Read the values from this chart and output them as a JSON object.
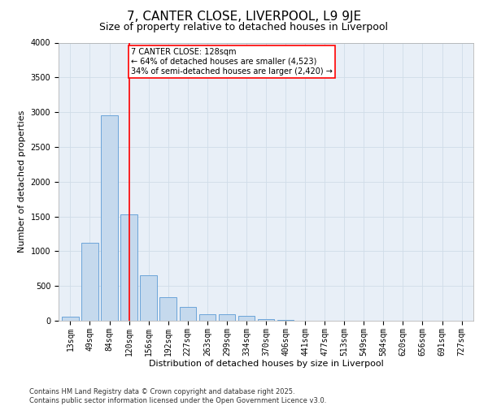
{
  "title": "7, CANTER CLOSE, LIVERPOOL, L9 9JE",
  "subtitle": "Size of property relative to detached houses in Liverpool",
  "xlabel": "Distribution of detached houses by size in Liverpool",
  "ylabel": "Number of detached properties",
  "categories": [
    "13sqm",
    "49sqm",
    "84sqm",
    "120sqm",
    "156sqm",
    "192sqm",
    "227sqm",
    "263sqm",
    "299sqm",
    "334sqm",
    "370sqm",
    "406sqm",
    "441sqm",
    "477sqm",
    "513sqm",
    "549sqm",
    "584sqm",
    "620sqm",
    "656sqm",
    "691sqm",
    "727sqm"
  ],
  "values": [
    55,
    1120,
    2960,
    1530,
    650,
    340,
    195,
    95,
    90,
    65,
    18,
    8,
    4,
    2,
    1,
    0,
    0,
    0,
    0,
    0,
    0
  ],
  "bar_color": "#c5d9ed",
  "bar_edge_color": "#5b9bd5",
  "vline_x_index": 3,
  "vline_color": "red",
  "annotation_text": "7 CANTER CLOSE: 128sqm\n← 64% of detached houses are smaller (4,523)\n34% of semi-detached houses are larger (2,420) →",
  "annotation_box_color": "red",
  "annotation_text_color": "black",
  "ylim": [
    0,
    4000
  ],
  "yticks": [
    0,
    500,
    1000,
    1500,
    2000,
    2500,
    3000,
    3500,
    4000
  ],
  "grid_color": "#d0dce8",
  "background_color": "#e8eff7",
  "footnote": "Contains HM Land Registry data © Crown copyright and database right 2025.\nContains public sector information licensed under the Open Government Licence v3.0.",
  "title_fontsize": 11,
  "subtitle_fontsize": 9,
  "xlabel_fontsize": 8,
  "ylabel_fontsize": 8,
  "tick_fontsize": 7,
  "annotation_fontsize": 7,
  "footnote_fontsize": 6
}
